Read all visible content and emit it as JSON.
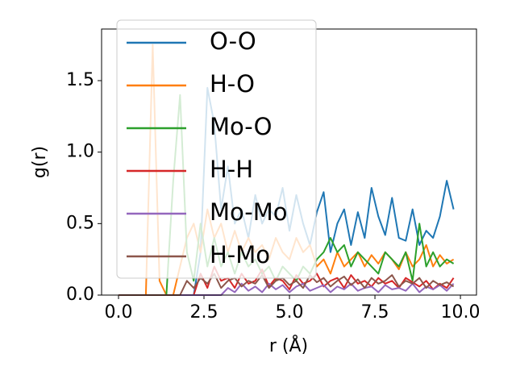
{
  "chart_data": {
    "type": "line",
    "xlabel": "r (Å)",
    "ylabel": "g(r)",
    "x": [
      0,
      0.2,
      0.4,
      0.6,
      0.8,
      1.0,
      1.2,
      1.4,
      1.6,
      1.8,
      2.0,
      2.2,
      2.4,
      2.6,
      2.8,
      3.0,
      3.2,
      3.4,
      3.6,
      3.8,
      4.0,
      4.2,
      4.4,
      4.6,
      4.8,
      5.0,
      5.2,
      5.4,
      5.6,
      5.8,
      6.0,
      6.2,
      6.4,
      6.6,
      6.8,
      7.0,
      7.2,
      7.4,
      7.6,
      7.8,
      8.0,
      8.2,
      8.4,
      8.6,
      8.8,
      9.0,
      9.2,
      9.4,
      9.6,
      9.8
    ],
    "series": [
      {
        "name": "O-O",
        "color": "#1f77b4",
        "values": [
          0,
          0,
          0,
          0,
          0,
          0,
          0,
          0,
          0,
          0,
          0,
          0,
          0.3,
          1.45,
          1.2,
          0.6,
          0.9,
          0.5,
          0.6,
          0.4,
          0.7,
          0.5,
          0.6,
          0.55,
          0.75,
          0.45,
          0.7,
          0.5,
          0.35,
          0.58,
          0.72,
          0.3,
          0.5,
          0.6,
          0.35,
          0.58,
          0.4,
          0.75,
          0.55,
          0.42,
          0.68,
          0.4,
          0.38,
          0.6,
          0.35,
          0.45,
          0.4,
          0.55,
          0.8,
          0.6
        ]
      },
      {
        "name": "H-O",
        "color": "#ff7f0e",
        "values": [
          0,
          0,
          0,
          0,
          0,
          1.75,
          0.1,
          0,
          0,
          0.2,
          0.4,
          0.5,
          0.3,
          0.6,
          0.4,
          0.5,
          0.3,
          0.45,
          0.3,
          0.4,
          0.3,
          0.35,
          0.25,
          0.4,
          0.3,
          0.25,
          0.4,
          0.3,
          0.35,
          0.2,
          0.25,
          0.15,
          0.3,
          0.2,
          0.25,
          0.3,
          0.2,
          0.28,
          0.22,
          0.3,
          0.25,
          0.18,
          0.3,
          0.2,
          0.25,
          0.35,
          0.2,
          0.28,
          0.22,
          0.25
        ]
      },
      {
        "name": "Mo-O",
        "color": "#2ca02c",
        "values": [
          0,
          0,
          0,
          0,
          0,
          0,
          0,
          0,
          0.8,
          1.4,
          0.3,
          0.1,
          0.5,
          0.2,
          0.4,
          0.2,
          0.3,
          0.15,
          0.3,
          0.2,
          0.25,
          0.15,
          0.2,
          0.1,
          0.2,
          0.15,
          0.1,
          0.2,
          0.15,
          0.25,
          0.3,
          0.4,
          0.3,
          0.35,
          0.2,
          0.3,
          0.25,
          0.2,
          0.15,
          0.3,
          0.25,
          0.2,
          0.3,
          0.1,
          0.5,
          0.2,
          0.3,
          0.2,
          0.25,
          0.22
        ]
      },
      {
        "name": "H-H",
        "color": "#d62728",
        "values": [
          0,
          0,
          0,
          0,
          0,
          0,
          0,
          0,
          0,
          0,
          0,
          0,
          0.15,
          0.05,
          0.2,
          0.1,
          0.12,
          0.05,
          0.15,
          0.08,
          0.1,
          0.18,
          0.06,
          0.12,
          0.1,
          0.04,
          0.14,
          0.08,
          0.1,
          0.15,
          0.06,
          0.1,
          0.12,
          0.05,
          0.14,
          0.08,
          0.1,
          0.06,
          0.12,
          0.08,
          0.1,
          0.05,
          0.12,
          0.09,
          0.06,
          0.1,
          0.04,
          0.08,
          0.05,
          0.12
        ]
      },
      {
        "name": "Mo-Mo",
        "color": "#9467bd",
        "values": [
          0,
          0,
          0,
          0,
          0,
          0,
          0,
          0,
          0,
          0,
          0,
          0,
          0,
          0,
          0,
          0,
          0.05,
          0.02,
          0.08,
          0.03,
          0.06,
          0.02,
          0.08,
          0.04,
          0.07,
          0.02,
          0.06,
          0.08,
          0.03,
          0.05,
          0.07,
          0.02,
          0.06,
          0.04,
          0.08,
          0.03,
          0.05,
          0.06,
          0.02,
          0.07,
          0.04,
          0.05,
          0.03,
          0.08,
          0.02,
          0.06,
          0.04,
          0.07,
          0.03,
          0.08
        ]
      },
      {
        "name": "H-Mo",
        "color": "#8c564b",
        "values": [
          0,
          0,
          0,
          0,
          0,
          0,
          0,
          0,
          0,
          0,
          0.1,
          0.05,
          0.12,
          0.08,
          0.15,
          0.05,
          0.1,
          0.12,
          0.06,
          0.1,
          0.08,
          0.14,
          0.05,
          0.1,
          0.12,
          0.07,
          0.1,
          0.05,
          0.14,
          0.09,
          0.12,
          0.06,
          0.1,
          0.13,
          0.07,
          0.11,
          0.05,
          0.12,
          0.08,
          0.1,
          0.14,
          0.06,
          0.1,
          0.08,
          0.12,
          0.05,
          0.1,
          0.07,
          0.09,
          0.06
        ]
      }
    ],
    "xlim": [
      -0.495,
      10.47
    ],
    "ylim": [
      0,
      1.861
    ],
    "xticks": [
      {
        "value": 0,
        "label": "0.0"
      },
      {
        "value": 2.5,
        "label": "2.5"
      },
      {
        "value": 5,
        "label": "5.0"
      },
      {
        "value": 7.5,
        "label": "7.5"
      },
      {
        "value": 10,
        "label": "10.0"
      }
    ],
    "yticks": [
      {
        "value": 0,
        "label": "0.0"
      },
      {
        "value": 0.5,
        "label": "0.5"
      },
      {
        "value": 1,
        "label": "1.0"
      },
      {
        "value": 1.5,
        "label": "1.5"
      }
    ],
    "legend": "upper left",
    "grid": false
  }
}
